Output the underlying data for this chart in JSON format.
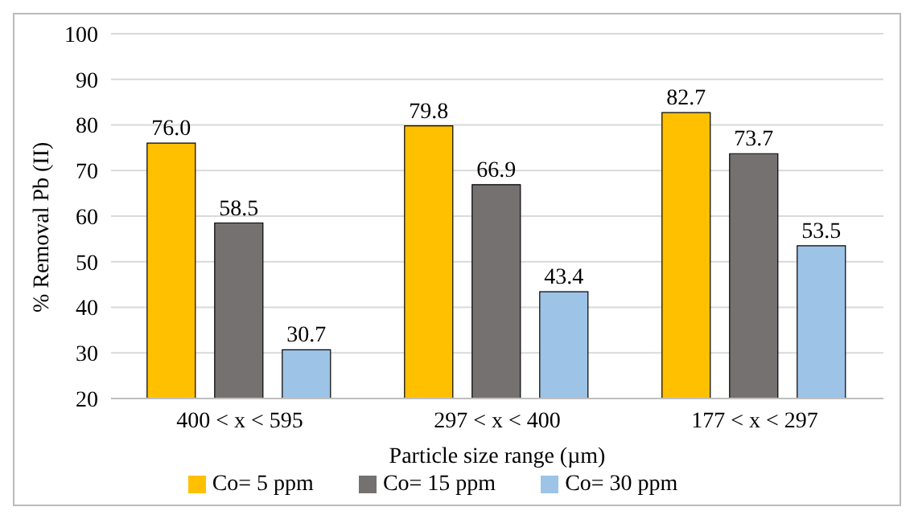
{
  "chart_data": {
    "type": "bar",
    "xlabel": "Particle size range (µm)",
    "ylabel": "% Removal Pb (II)",
    "categories": [
      "400 < x < 595",
      "297 < x < 400",
      "177 < x < 297"
    ],
    "series": [
      {
        "name": "Co= 5 ppm",
        "color": "#ffc000",
        "values": [
          76.0,
          79.8,
          82.7
        ],
        "value_labels": [
          "76.0",
          "79.8",
          "82.7"
        ]
      },
      {
        "name": "Co= 15 ppm",
        "color": "#767171",
        "values": [
          58.5,
          66.9,
          73.7
        ],
        "value_labels": [
          "58.5",
          "66.9",
          "73.7"
        ]
      },
      {
        "name": "Co= 30 ppm",
        "color": "#9dc3e6",
        "values": [
          30.7,
          43.4,
          53.5
        ],
        "value_labels": [
          "30.7",
          "43.4",
          "53.5"
        ]
      }
    ],
    "ylim": [
      20,
      100
    ],
    "yticks": [
      20,
      30,
      40,
      50,
      60,
      70,
      80,
      90,
      100
    ],
    "grid": "y",
    "legend": "bottom"
  }
}
